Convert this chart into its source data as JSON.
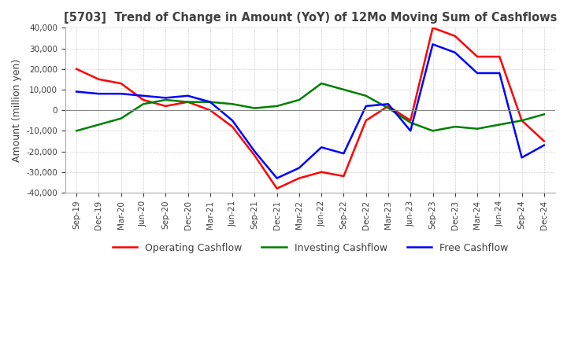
{
  "title": "[5703]  Trend of Change in Amount (YoY) of 12Mo Moving Sum of Cashflows",
  "ylabel": "Amount (million yen)",
  "ylim": [
    -40000,
    40000
  ],
  "yticks": [
    -40000,
    -30000,
    -20000,
    -10000,
    0,
    10000,
    20000,
    30000,
    40000
  ],
  "x_labels": [
    "Sep-19",
    "Dec-19",
    "Mar-20",
    "Jun-20",
    "Sep-20",
    "Dec-20",
    "Mar-21",
    "Jun-21",
    "Sep-21",
    "Dec-21",
    "Mar-22",
    "Jun-22",
    "Sep-22",
    "Dec-22",
    "Mar-23",
    "Jun-23",
    "Sep-23",
    "Dec-23",
    "Mar-24",
    "Jun-24",
    "Sep-24",
    "Dec-24"
  ],
  "operating": [
    20000,
    15000,
    13000,
    5000,
    2000,
    4000,
    0,
    -8000,
    -22000,
    -38000,
    -33000,
    -30000,
    -32000,
    -5000,
    2000,
    -5000,
    40000,
    36000,
    26000,
    26000,
    -5000,
    -15000
  ],
  "investing": [
    -10000,
    -7000,
    -4000,
    3000,
    5000,
    4000,
    4000,
    3000,
    1000,
    2000,
    5000,
    13000,
    10000,
    7000,
    1000,
    -6000,
    -10000,
    -8000,
    -9000,
    -7000,
    -5000,
    -2000
  ],
  "free": [
    9000,
    8000,
    8000,
    7000,
    6000,
    7000,
    4000,
    -5000,
    -20000,
    -33000,
    -28000,
    -18000,
    -21000,
    2000,
    3000,
    -10000,
    32000,
    28000,
    18000,
    18000,
    -23000,
    -17000
  ],
  "op_color": "#ff0000",
  "inv_color": "#008000",
  "free_color": "#0000ff",
  "bg_color": "#ffffff",
  "grid_color": "#aaaaaa",
  "title_color": "#404040"
}
